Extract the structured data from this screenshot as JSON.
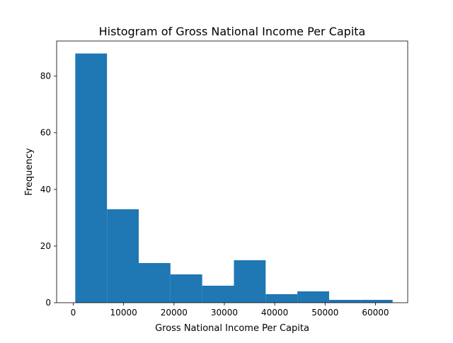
{
  "chart_data": {
    "type": "bar",
    "title": "Histogram of Gross National Income Per Capita",
    "xlabel": "Gross National Income Per Capita",
    "ylabel": "Frequency",
    "xlim": [
      -3300,
      66400
    ],
    "ylim": [
      0,
      92.4
    ],
    "xticks": [
      0,
      10000,
      20000,
      30000,
      40000,
      50000,
      60000
    ],
    "xtick_labels": [
      "0",
      "10000",
      "20000",
      "30000",
      "40000",
      "50000",
      "60000"
    ],
    "yticks": [
      0,
      20,
      40,
      60,
      80
    ],
    "ytick_labels": [
      "0",
      "20",
      "40",
      "60",
      "80"
    ],
    "bin_edges": [
      400,
      6700,
      13000,
      19300,
      25600,
      31900,
      38200,
      44500,
      50800,
      57100,
      63400
    ],
    "values": [
      88,
      33,
      14,
      10,
      6,
      15,
      3,
      4,
      1,
      1
    ],
    "grid": false,
    "bar_color": "#1f77b4"
  }
}
